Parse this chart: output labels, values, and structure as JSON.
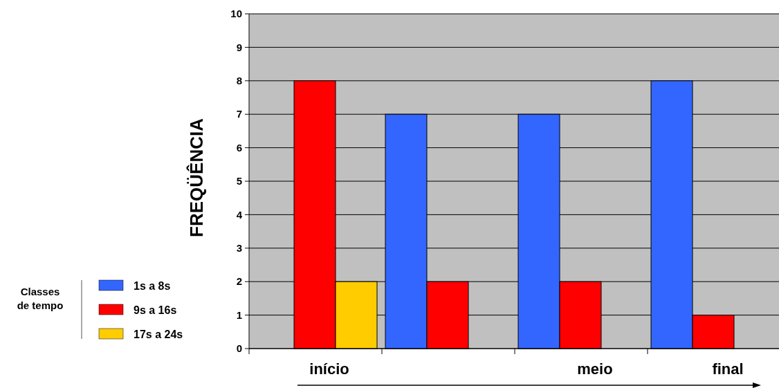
{
  "chart_data": {
    "type": "bar",
    "ylabel": "FREQÜÊNCIA",
    "legend_title": "Classes de tempo",
    "categories": [
      "início",
      null,
      "meio",
      "final"
    ],
    "series": [
      {
        "name": "1s a 8s",
        "color": "#3366ff",
        "values": [
          null,
          7,
          7,
          8
        ]
      },
      {
        "name": "9s a 16s",
        "color": "#ff0000",
        "values": [
          8,
          2,
          2,
          1
        ]
      },
      {
        "name": "17s a 24s",
        "color": "#ffcc00",
        "values": [
          2,
          null,
          null,
          null
        ]
      }
    ],
    "ylim": [
      0,
      10
    ],
    "yticks": [
      0,
      1,
      2,
      3,
      4,
      5,
      6,
      7,
      8,
      9,
      10
    ],
    "grid": "y",
    "legend": "left"
  }
}
